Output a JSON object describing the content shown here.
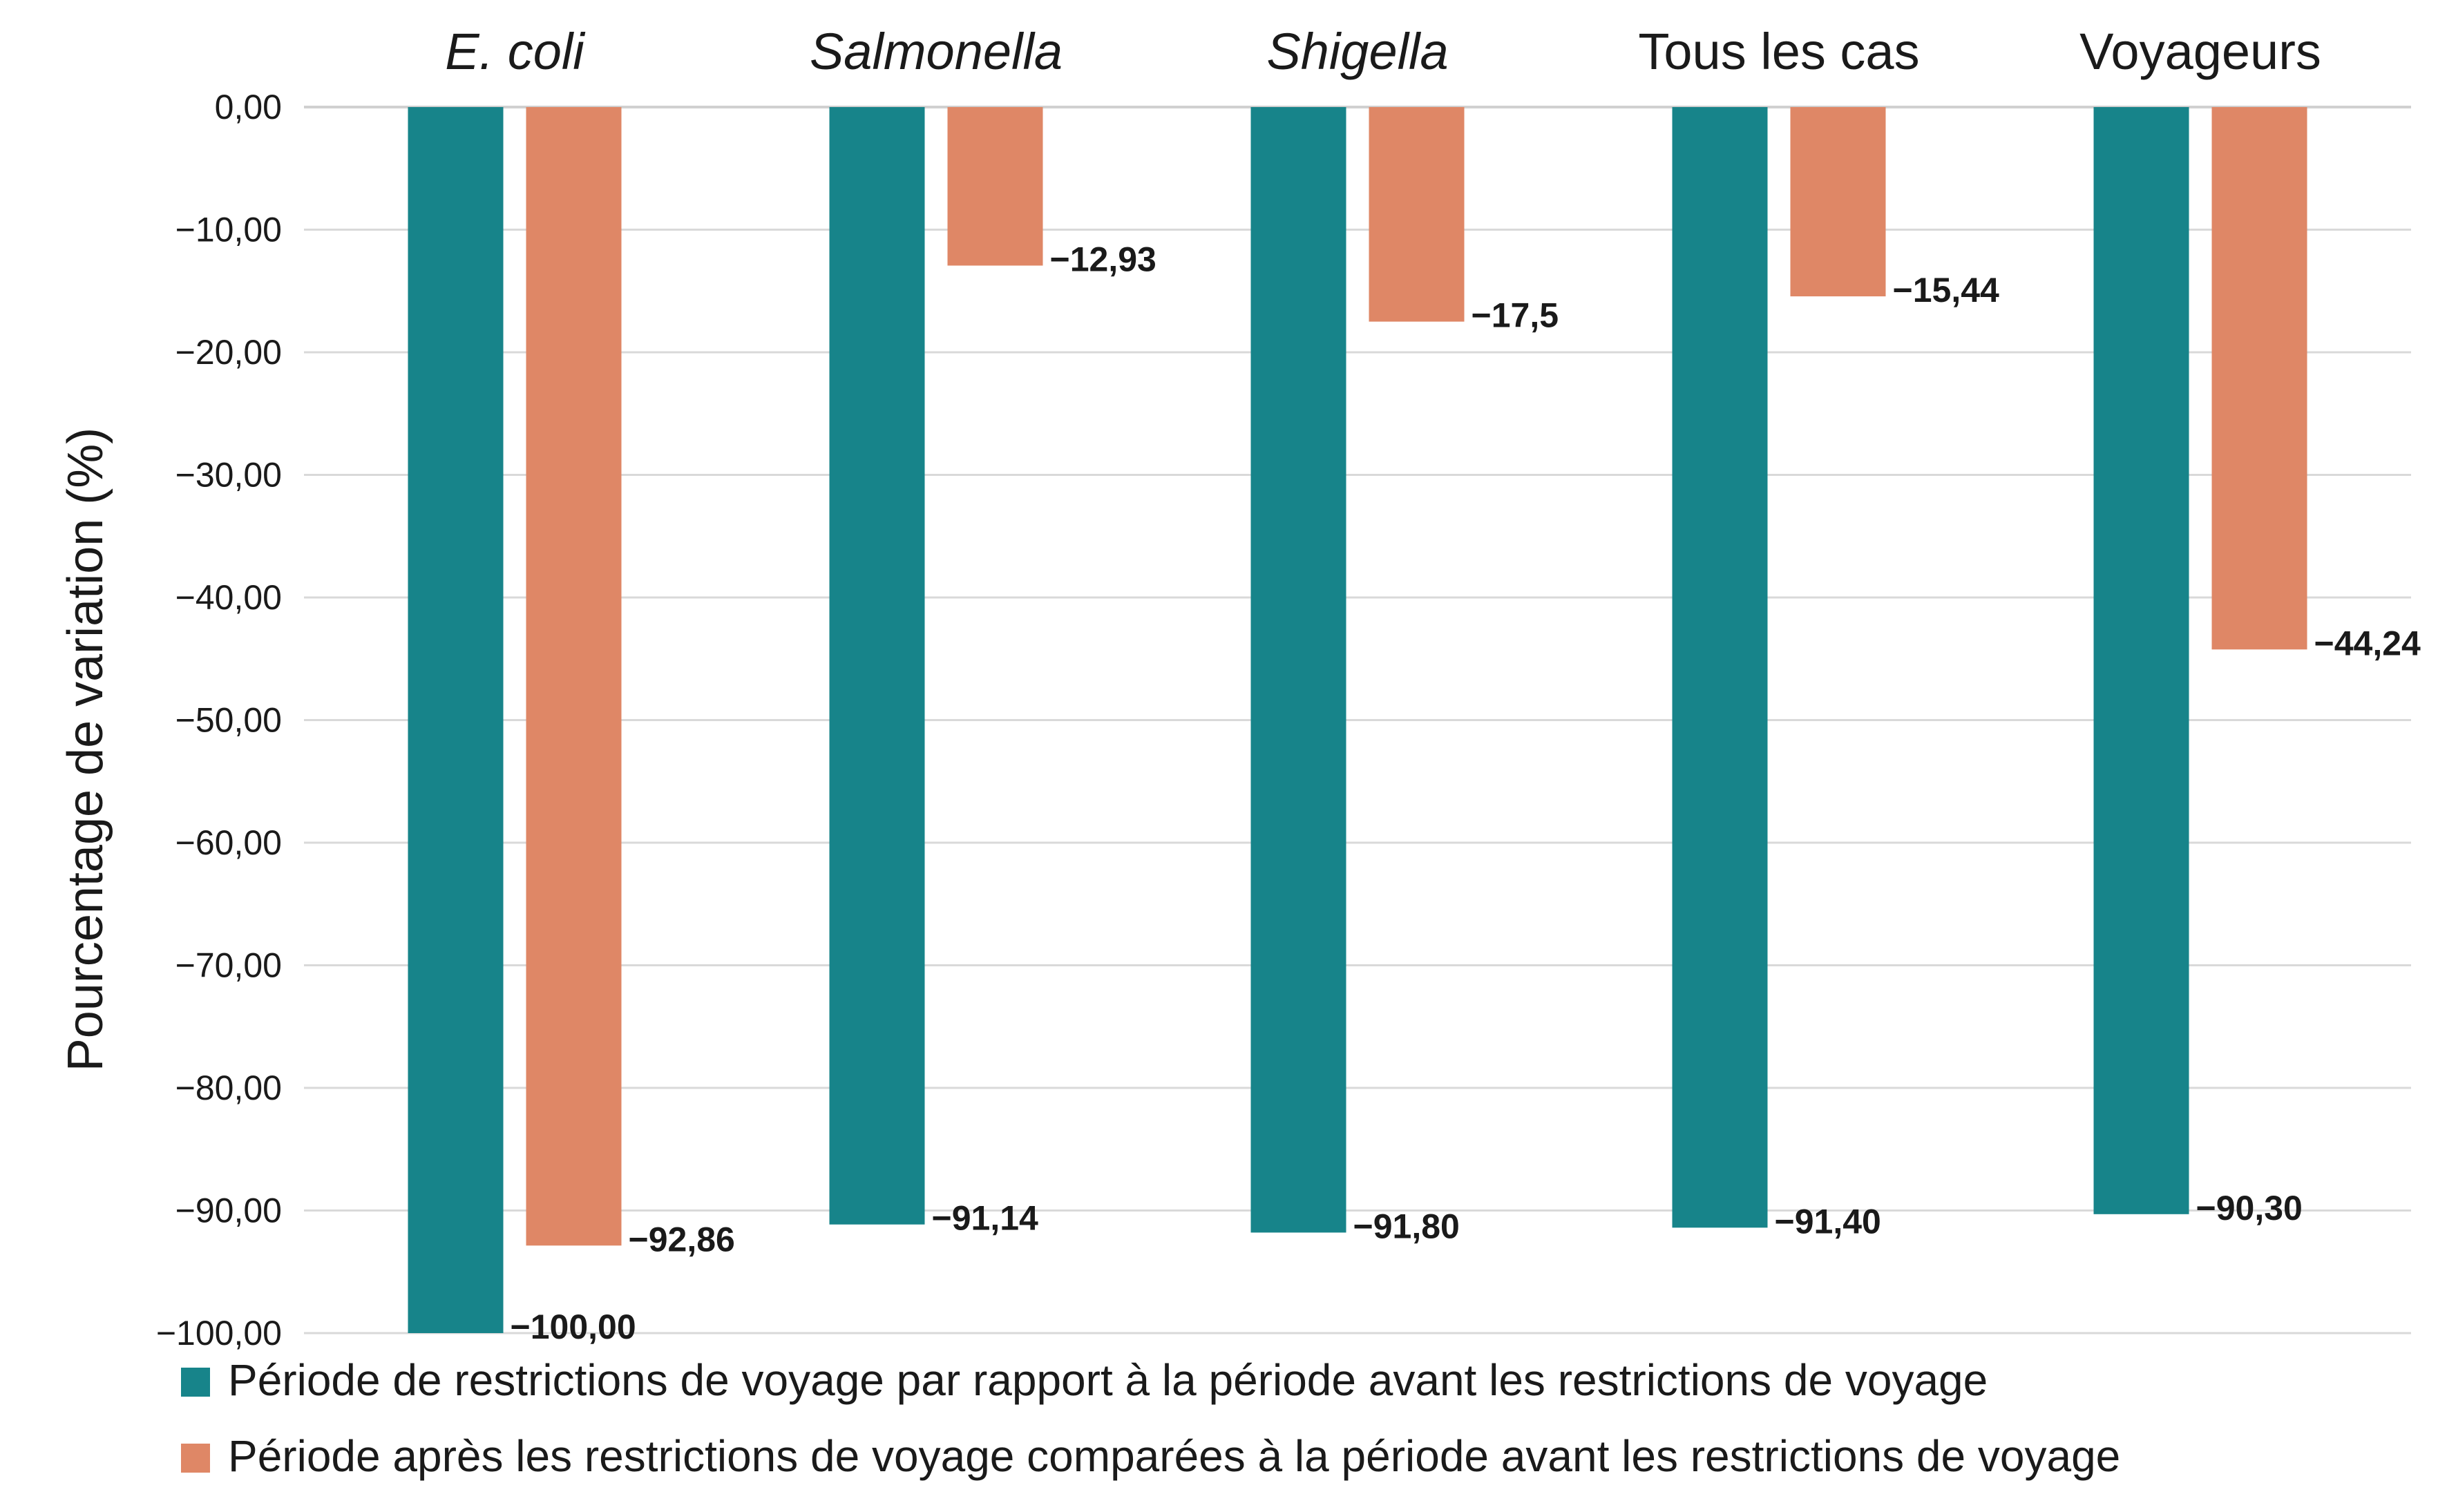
{
  "chart_data": {
    "type": "bar",
    "categories": [
      "E. coli",
      "Salmonella",
      "Shigella",
      "Tous les cas",
      "Voyageurs"
    ],
    "categories_italic": [
      true,
      true,
      true,
      false,
      false
    ],
    "series": [
      {
        "name": "Période de restrictions de voyage par rapport à la période avant les restrictions de voyage",
        "color": "#17848A",
        "values": [
          -100.0,
          -91.14,
          -91.8,
          -91.4,
          -90.3
        ],
        "labels": [
          "−100,00",
          "−91,14",
          "−91,80",
          "−91,40",
          "−90,30"
        ]
      },
      {
        "name": "Période après les restrictions de voyage comparées à la période avant les restrictions de voyage",
        "color": "#DF8766",
        "values": [
          -92.86,
          -12.93,
          -17.5,
          -15.44,
          -44.24
        ],
        "labels": [
          "−92,86",
          "−12,93",
          "−17,5",
          "−15,44",
          "−44,24"
        ]
      }
    ],
    "title": "",
    "xlabel": "",
    "ylabel": "Pourcentage de variation (%)",
    "ylim": [
      -100,
      0
    ],
    "yticks": [
      0,
      -10,
      -20,
      -30,
      -40,
      -50,
      -60,
      -70,
      -80,
      -90,
      -100
    ],
    "ytick_labels": [
      "0,00",
      "−10,00",
      "−20,00",
      "−30,00",
      "−40,00",
      "−50,00",
      "−60,00",
      "−70,00",
      "−80,00",
      "−90,00",
      "−100,00"
    ],
    "grid": true,
    "legend_position": "bottom",
    "category_position": "top"
  }
}
